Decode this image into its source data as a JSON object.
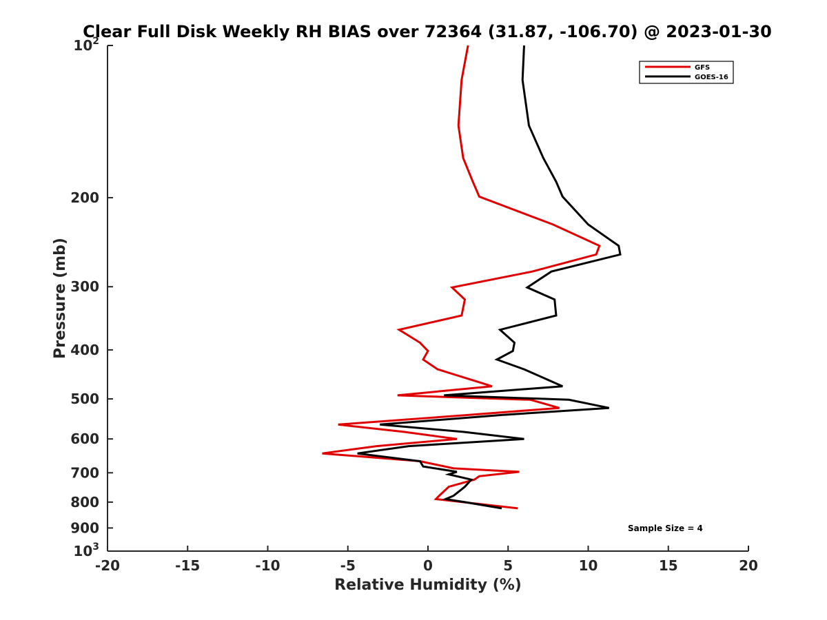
{
  "chart_data": {
    "type": "line",
    "title": "Clear Full Disk Weekly RH BIAS over 72364 (31.87, -106.70) @ 2023-01-30",
    "xlabel": "Relative Humidity (%)",
    "ylabel": "Pressure (mb)",
    "xlim": [
      -20,
      20
    ],
    "ylim": [
      100,
      1000
    ],
    "y_scale": "log",
    "y_reversed": true,
    "grid": false,
    "x_ticks": [
      "-20",
      "-15",
      "-10",
      "-5",
      "0",
      "5",
      "10",
      "15",
      "20"
    ],
    "y_ticks": [
      {
        "value": 100,
        "base": "10",
        "exp": "2"
      },
      {
        "value": 200,
        "label": "200"
      },
      {
        "value": 300,
        "label": "300"
      },
      {
        "value": 400,
        "label": "400"
      },
      {
        "value": 500,
        "label": "500"
      },
      {
        "value": 600,
        "label": "600"
      },
      {
        "value": 700,
        "label": "700"
      },
      {
        "value": 800,
        "label": "800"
      },
      {
        "value": 900,
        "label": "900"
      },
      {
        "value": 1000,
        "base": "10",
        "exp": "3"
      }
    ],
    "legend_position": "top-right",
    "annotation": "Sample Size = 4",
    "series": [
      {
        "name": "GFS",
        "color": "#e00000",
        "points": [
          [
            2.5,
            100
          ],
          [
            2.1,
            117
          ],
          [
            1.9,
            144
          ],
          [
            2.2,
            167
          ],
          [
            2.8,
            186
          ],
          [
            3.2,
            199
          ],
          [
            7.8,
            226
          ],
          [
            10.7,
            249
          ],
          [
            10.5,
            259
          ],
          [
            6.5,
            280
          ],
          [
            1.5,
            301
          ],
          [
            2.3,
            318
          ],
          [
            2.1,
            342
          ],
          [
            -1.8,
            365
          ],
          [
            -0.5,
            387
          ],
          [
            0,
            402
          ],
          [
            -0.3,
            418
          ],
          [
            0.6,
            437
          ],
          [
            4,
            472
          ],
          [
            -1.9,
            492
          ],
          [
            6.4,
            502
          ],
          [
            8.2,
            521
          ],
          [
            2.5,
            538
          ],
          [
            -5.6,
            562
          ],
          [
            -1.5,
            581
          ],
          [
            1.8,
            600
          ],
          [
            -3.2,
            620
          ],
          [
            -6.6,
            641
          ],
          [
            -0.5,
            664
          ],
          [
            1.6,
            686
          ],
          [
            5.7,
            697
          ],
          [
            3.2,
            711
          ],
          [
            2.9,
            722
          ],
          [
            1.3,
            746
          ],
          [
            0.7,
            777
          ],
          [
            0.5,
            789
          ],
          [
            5.6,
            823
          ]
        ]
      },
      {
        "name": "GOES-16",
        "color": "#000000",
        "points": [
          [
            6,
            100
          ],
          [
            5.9,
            117
          ],
          [
            6.3,
            144
          ],
          [
            7.2,
            167
          ],
          [
            8,
            186
          ],
          [
            8.4,
            199
          ],
          [
            10,
            226
          ],
          [
            11.9,
            249
          ],
          [
            12,
            259
          ],
          [
            7.7,
            280
          ],
          [
            6.2,
            301
          ],
          [
            7.9,
            318
          ],
          [
            8,
            342
          ],
          [
            4.5,
            365
          ],
          [
            5.4,
            387
          ],
          [
            5.3,
            402
          ],
          [
            4.3,
            418
          ],
          [
            6,
            437
          ],
          [
            8.4,
            472
          ],
          [
            1,
            492
          ],
          [
            8.8,
            502
          ],
          [
            11.3,
            521
          ],
          [
            4.6,
            538
          ],
          [
            -3,
            562
          ],
          [
            2.2,
            581
          ],
          [
            6,
            600
          ],
          [
            -1.2,
            620
          ],
          [
            -4.4,
            641
          ],
          [
            -0.5,
            664
          ],
          [
            -0.3,
            680
          ],
          [
            1.8,
            697
          ],
          [
            1.3,
            705
          ],
          [
            2.7,
            722
          ],
          [
            2.3,
            746
          ],
          [
            1.6,
            777
          ],
          [
            1.1,
            789
          ],
          [
            2.3,
            800
          ],
          [
            4.6,
            823
          ]
        ]
      }
    ]
  }
}
